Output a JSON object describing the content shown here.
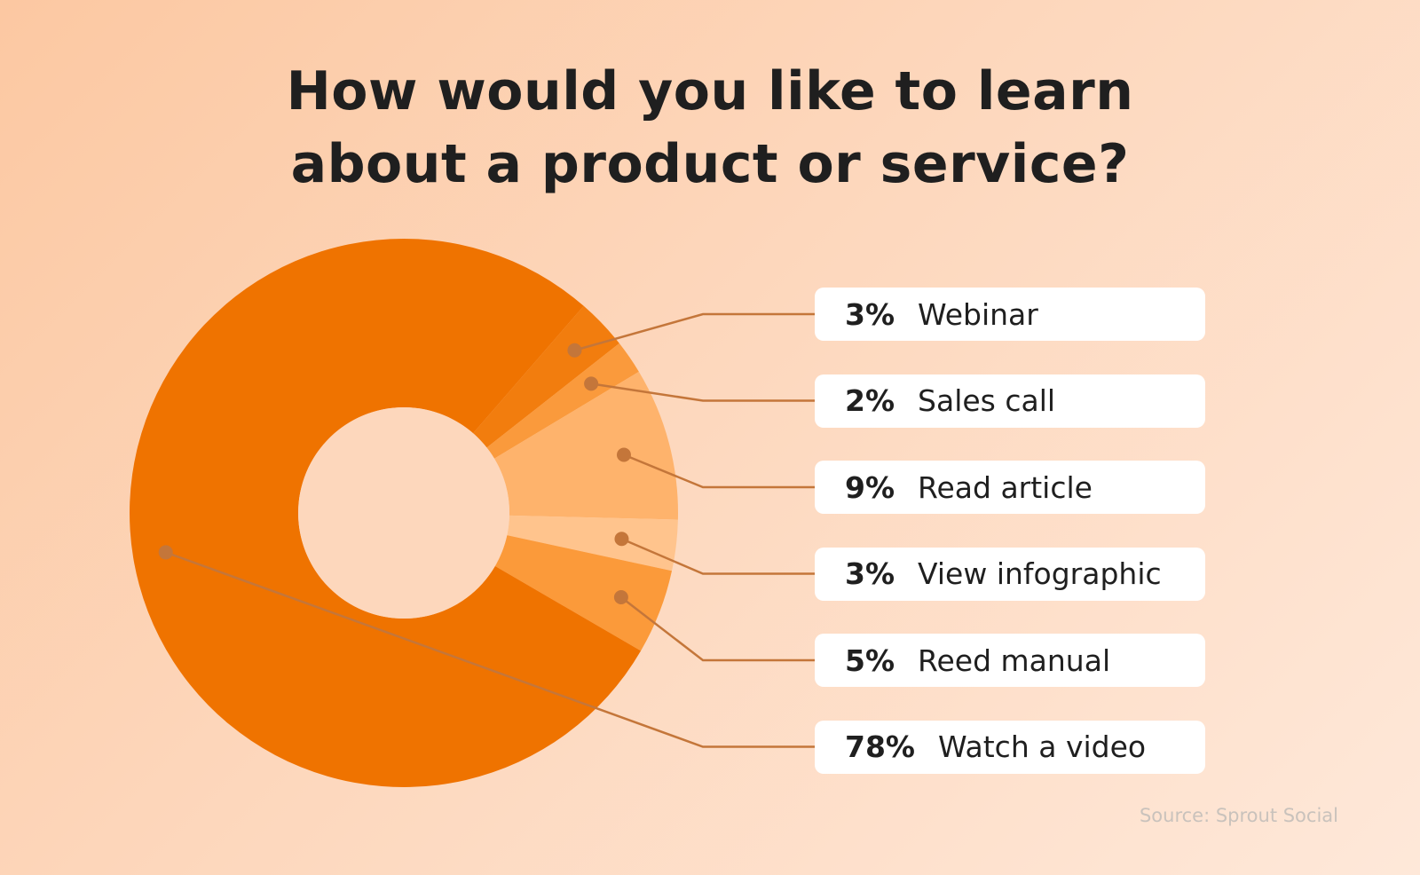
{
  "title_line1": "How would you like to learn",
  "title_line2": "about a product or service?",
  "source": "Source: Sprout Social",
  "colors": {
    "leader": "#c4763a",
    "hole": "#fdd7bc"
  },
  "chart_data": {
    "type": "pie",
    "donut": true,
    "title": "How would you like to learn about a product or service?",
    "slices": [
      {
        "label": "Webinar",
        "pct_label": "3%",
        "value": 3,
        "color": "#f27d0e"
      },
      {
        "label": "Sales call",
        "pct_label": "2%",
        "value": 2,
        "color": "#fa9a3c"
      },
      {
        "label": "Read article",
        "pct_label": "9%",
        "value": 9,
        "color": "#feb36c"
      },
      {
        "label": "View infographic",
        "pct_label": "3%",
        "value": 3,
        "color": "#ffc48d"
      },
      {
        "label": "Reed manual",
        "pct_label": "5%",
        "value": 5,
        "color": "#fb9a3a"
      },
      {
        "label": "Watch a video",
        "pct_label": "78%",
        "value": 78,
        "color": "#ef7300"
      }
    ]
  }
}
